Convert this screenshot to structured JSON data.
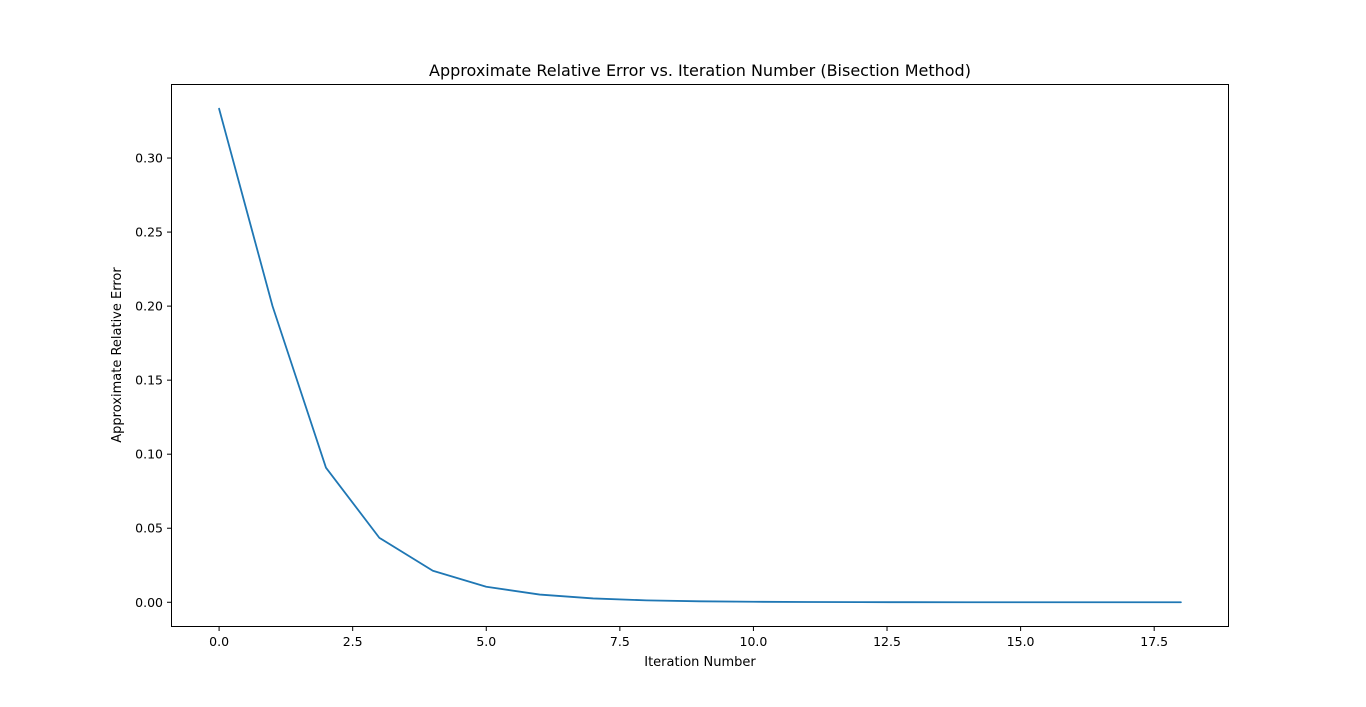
{
  "chart_data": {
    "type": "line",
    "title": "Approximate Relative Error vs. Iteration Number (Bisection Method)",
    "xlabel": "Iteration Number",
    "ylabel": "Approximate Relative Error",
    "xlim": [
      -0.9,
      18.9
    ],
    "ylim": [
      -0.0167,
      0.35
    ],
    "xticks": [
      0.0,
      2.5,
      5.0,
      7.5,
      10.0,
      12.5,
      15.0,
      17.5
    ],
    "xtick_labels": [
      "0.0",
      "2.5",
      "5.0",
      "7.5",
      "10.0",
      "12.5",
      "15.0",
      "17.5"
    ],
    "yticks": [
      0.0,
      0.05,
      0.1,
      0.15,
      0.2,
      0.25,
      0.3
    ],
    "ytick_labels": [
      "0.00",
      "0.05",
      "0.10",
      "0.15",
      "0.20",
      "0.25",
      "0.30"
    ],
    "grid": false,
    "series": [
      {
        "color": "#1f77b4",
        "x": [
          0,
          1,
          2,
          3,
          4,
          5,
          6,
          7,
          8,
          9,
          10,
          11,
          12,
          13,
          14,
          15,
          16,
          17,
          18
        ],
        "y": [
          0.3333,
          0.2,
          0.0909,
          0.0435,
          0.0213,
          0.0105,
          0.0052,
          0.0026,
          0.0013,
          0.00065,
          0.00033,
          0.00016,
          8e-05,
          4e-05,
          2e-05,
          1e-05,
          5e-06,
          2.5e-06,
          1.3e-06
        ]
      }
    ]
  }
}
